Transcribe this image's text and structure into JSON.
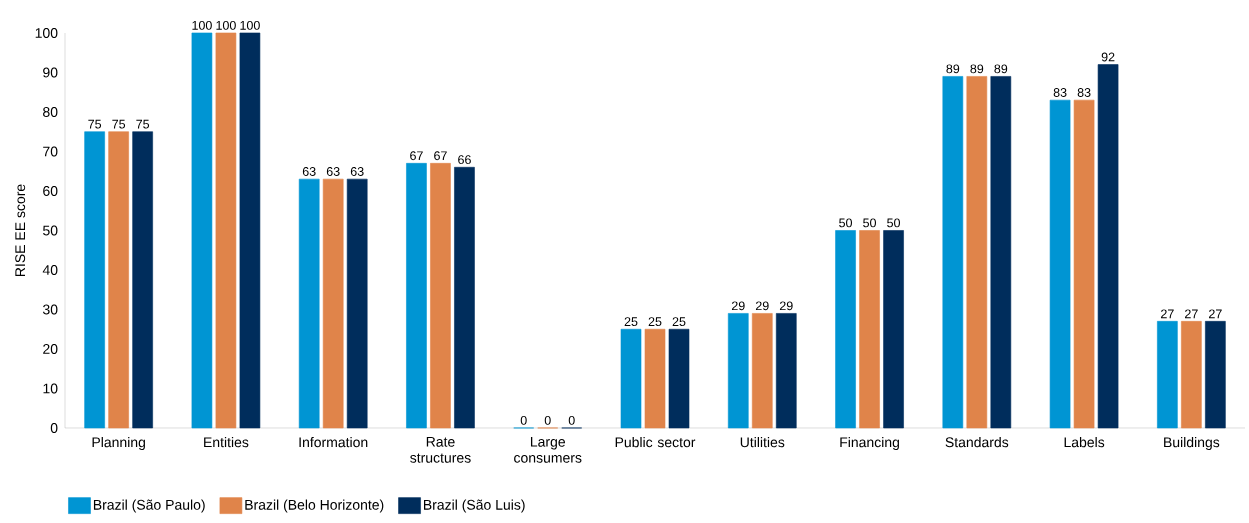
{
  "chart_data": {
    "type": "bar",
    "ylabel": "RISE EE score",
    "categories": [
      "Planning",
      "Entities",
      "Information",
      "Rate structures",
      "Large consumers",
      "Public sector",
      "Utilities",
      "Financing",
      "Standards",
      "Labels",
      "Buildings"
    ],
    "series": [
      {
        "name": "Brazil (São Paulo)",
        "color": "#0095d3",
        "values": [
          75,
          100,
          63,
          67,
          0,
          25,
          29,
          50,
          89,
          83,
          27
        ]
      },
      {
        "name": "Brazil (Belo Horizonte)",
        "color": "#e0844a",
        "values": [
          75,
          100,
          63,
          67,
          0,
          25,
          29,
          50,
          89,
          83,
          27
        ]
      },
      {
        "name": "Brazil (São Luis)",
        "color": "#002d5c",
        "values": [
          75,
          100,
          63,
          66,
          0,
          25,
          29,
          50,
          89,
          92,
          27
        ]
      }
    ],
    "ylim": [
      0,
      100
    ],
    "yticks": [
      0,
      10,
      20,
      30,
      40,
      50,
      60,
      70,
      80,
      90,
      100
    ],
    "data_labels": true,
    "grid": false,
    "legend": "bottom left"
  }
}
